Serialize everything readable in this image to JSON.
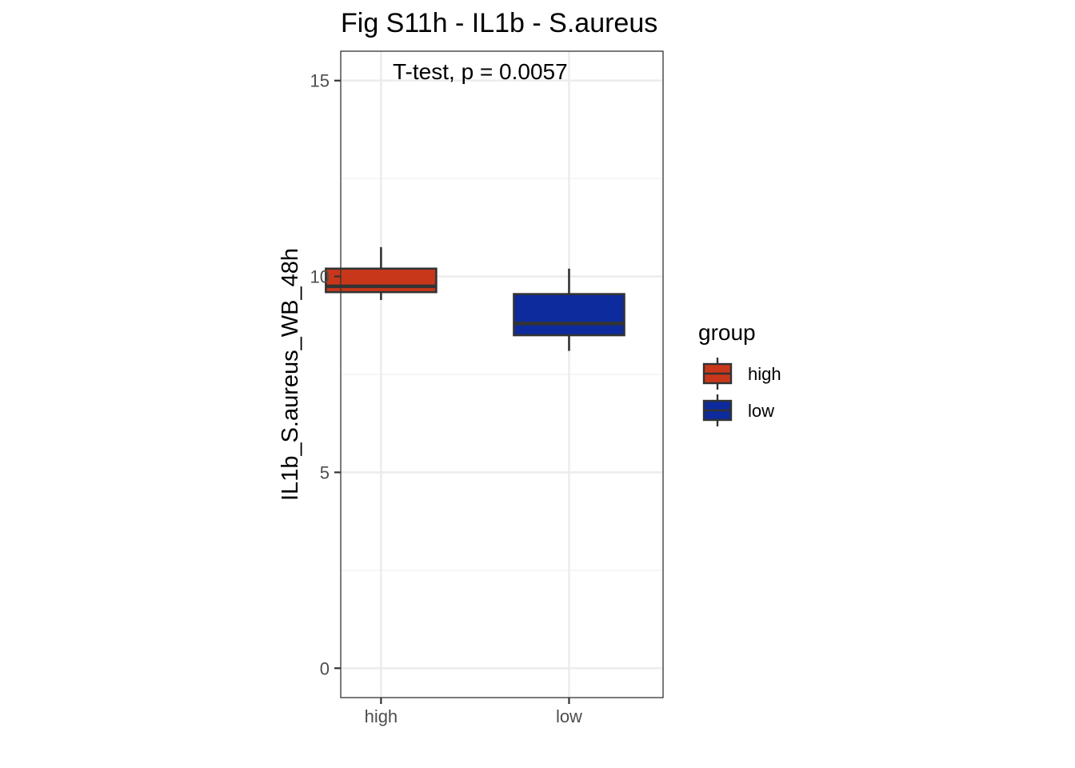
{
  "chart_data": {
    "type": "box",
    "title": "Fig S11h - IL1b - S.aureus",
    "xlabel": "",
    "ylabel": "IL1b_S.aureus_WB_48h",
    "categories": [
      "high",
      "low"
    ],
    "ylim": [
      -0.75,
      15.75
    ],
    "yticks": [
      0,
      5,
      10,
      15
    ],
    "grid": true,
    "annotation": "T-test, p = 0.0057",
    "series": [
      {
        "name": "high",
        "color": "#C9371A",
        "whisker_low": 9.4,
        "q1": 9.6,
        "median": 9.75,
        "q3": 10.2,
        "whisker_high": 10.75
      },
      {
        "name": "low",
        "color": "#0D2B9C",
        "whisker_low": 8.1,
        "q1": 8.5,
        "median": 8.8,
        "q3": 9.55,
        "whisker_high": 10.2
      }
    ],
    "legend": {
      "title": "group",
      "position": "right",
      "items": [
        "high",
        "low"
      ]
    }
  }
}
